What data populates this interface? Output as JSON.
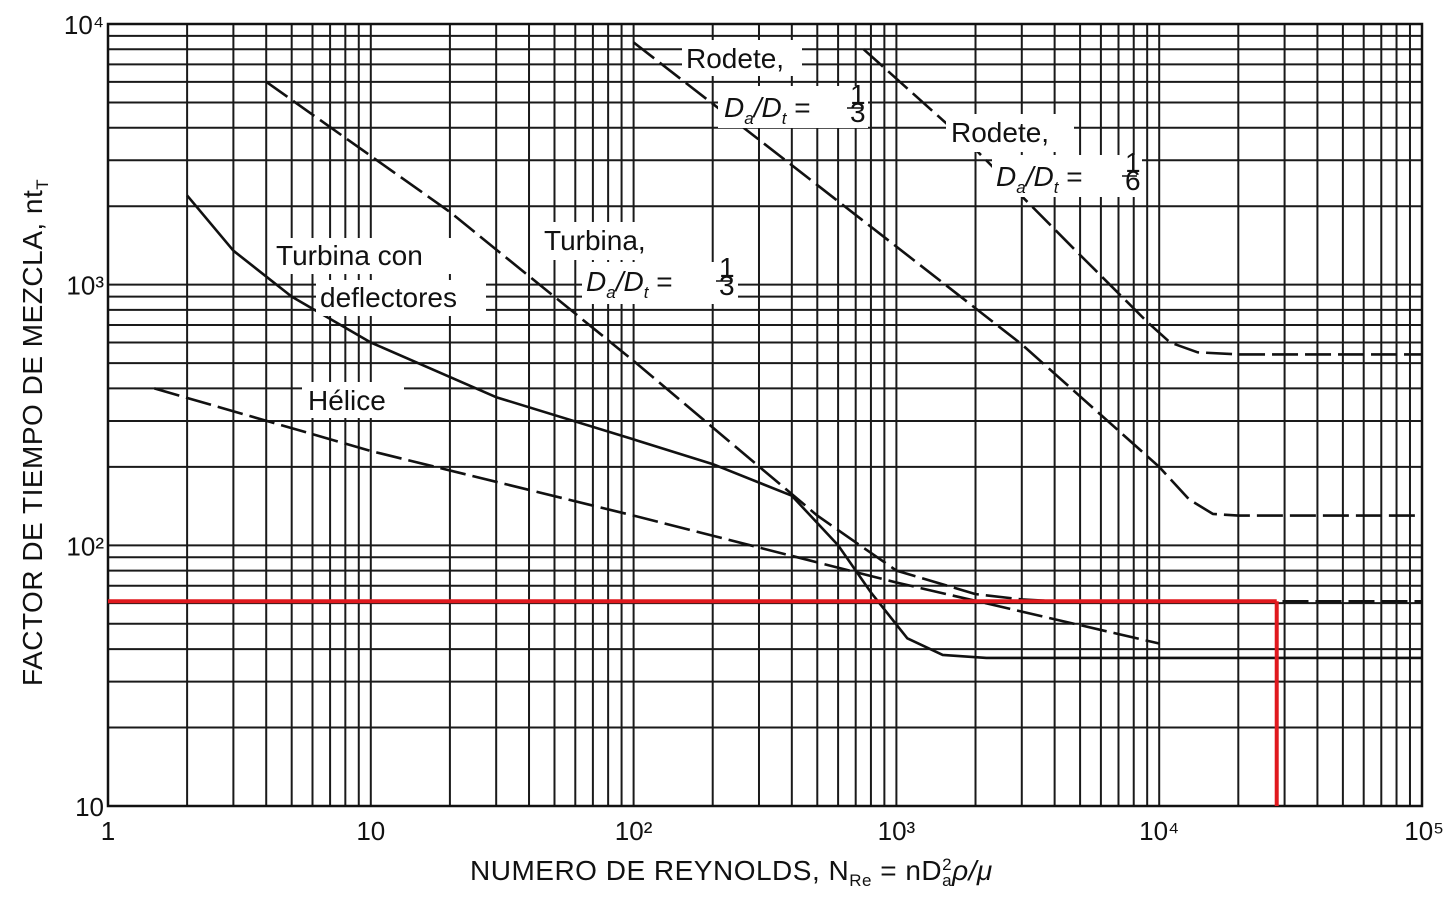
{
  "chart_data": {
    "type": "line",
    "x_scale": "log",
    "y_scale": "log",
    "xlim": [
      1,
      100000
    ],
    "ylim": [
      10,
      10000
    ],
    "grid": true,
    "x_ticks": [
      {
        "value": 1,
        "label": "1"
      },
      {
        "value": 10,
        "label": "10"
      },
      {
        "value": 100,
        "label": "10²"
      },
      {
        "value": 1000,
        "label": "10³"
      },
      {
        "value": 10000,
        "label": "10⁴"
      },
      {
        "value": 100000,
        "label": "10⁵"
      }
    ],
    "y_ticks": [
      {
        "value": 10,
        "label": "10"
      },
      {
        "value": 100,
        "label": "10²"
      },
      {
        "value": 1000,
        "label": "10³"
      },
      {
        "value": 10000,
        "label": "10⁴"
      }
    ],
    "xlabel": "NUMERO DE REYNOLDS, N",
    "xlabel_sub": "Re",
    "xlabel_eq": " = nD",
    "xlabel_sup": "2",
    "xlabel_sub2": "a",
    "xlabel_tail": "ρ/μ",
    "ylabel": "FACTOR DE TIEMPO DE MEZCLA, nt",
    "ylabel_sub": "T",
    "series": [
      {
        "name": "Rodete, Da/Dt = 1/3",
        "style": "dashed",
        "x": [
          100,
          300,
          1000,
          3000,
          10000,
          13000,
          16000,
          20000,
          100000
        ],
        "y": [
          8500,
          3600,
          1400,
          590,
          200,
          150,
          132,
          130,
          130
        ]
      },
      {
        "name": "Rodete, Da/Dt = 1/6",
        "style": "dashed",
        "x": [
          750,
          2000,
          5000,
          9000,
          11000,
          14000,
          20000,
          100000
        ],
        "y": [
          8000,
          3300,
          1300,
          720,
          600,
          550,
          540,
          540
        ]
      },
      {
        "name": "Turbina, Da/Dt = 1/3",
        "style": "dashed",
        "x": [
          4,
          20,
          100,
          500,
          1000,
          2000,
          3000,
          4000,
          10000,
          100000
        ],
        "y": [
          6000,
          1900,
          510,
          130,
          80,
          65,
          62,
          61,
          61,
          61
        ]
      },
      {
        "name": "Turbina con deflectores",
        "style": "solid",
        "x": [
          2,
          3,
          5,
          10,
          30,
          100,
          200,
          400,
          600,
          800,
          1100,
          1500,
          2200,
          100000
        ],
        "y": [
          2200,
          1350,
          900,
          600,
          370,
          255,
          205,
          155,
          100,
          66,
          44,
          38,
          37,
          37
        ]
      },
      {
        "name": "Hélice",
        "style": "dashed",
        "x": [
          1.5,
          10,
          100,
          1000,
          10000
        ],
        "y": [
          400,
          230,
          130,
          72,
          42
        ]
      }
    ],
    "reference_lines": [
      {
        "color": "#e0191e",
        "y": 61,
        "x_from": 1,
        "x_to": 28000
      },
      {
        "color": "#e0191e",
        "x": 28000,
        "y_from": 10,
        "y_to": 61
      }
    ],
    "annotations": [
      {
        "lines": [
          "Rodete,",
          "D",
          "a",
          "/D",
          "t",
          " = ",
          "1",
          "3"
        ]
      },
      {
        "lines": [
          "Rodete,",
          "D",
          "a",
          "/D",
          "t",
          " = ",
          "1",
          "6"
        ]
      },
      {
        "lines": [
          "Turbina,",
          "D",
          "a",
          "/D",
          "t",
          " = ",
          "1",
          "3"
        ]
      },
      {
        "lines": [
          "Turbina con",
          "deflectores"
        ]
      },
      {
        "lines": [
          "Hélice"
        ]
      }
    ]
  }
}
